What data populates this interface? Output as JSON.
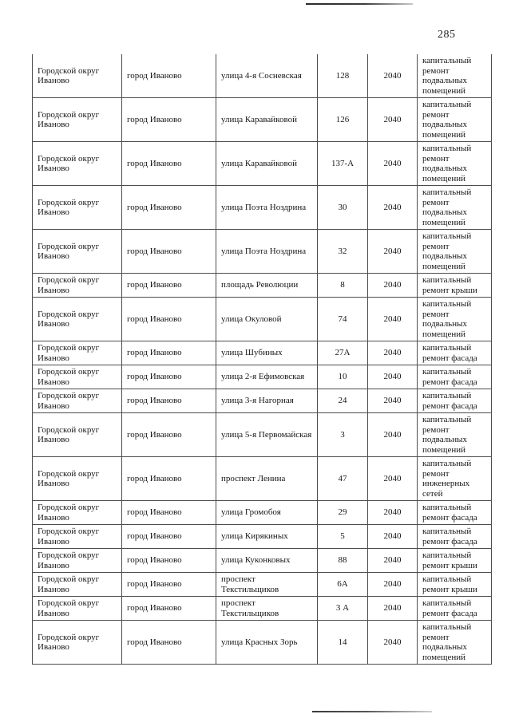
{
  "page": {
    "number": "285"
  },
  "table": {
    "rows": [
      {
        "district": "Городской округ Иваново",
        "city": "город Иваново",
        "street": "улица 4-я Сосневская",
        "house": "128",
        "year": "2040",
        "work": "капитальный ремонт подвальных помещений"
      },
      {
        "district": "Городской округ Иваново",
        "city": "город Иваново",
        "street": "улица Каравайковой",
        "house": "126",
        "year": "2040",
        "work": "капитальный ремонт подвальных помещений"
      },
      {
        "district": "Городской округ Иваново",
        "city": "город Иваново",
        "street": "улица Каравайковой",
        "house": "137-А",
        "year": "2040",
        "work": "капитальный ремонт подвальных помещений"
      },
      {
        "district": "Городской округ Иваново",
        "city": "город Иваново",
        "street": "улица Поэта Ноздрина",
        "house": "30",
        "year": "2040",
        "work": "капитальный ремонт подвальных помещений"
      },
      {
        "district": "Городской округ Иваново",
        "city": "город Иваново",
        "street": "улица Поэта Ноздрина",
        "house": "32",
        "year": "2040",
        "work": "капитальный ремонт подвальных помещений"
      },
      {
        "district": "Городской округ Иваново",
        "city": "город Иваново",
        "street": "площадь Революции",
        "house": "8",
        "year": "2040",
        "work": "капитальный ремонт крыши"
      },
      {
        "district": "Городской округ Иваново",
        "city": "город Иваново",
        "street": "улица Окуловой",
        "house": "74",
        "year": "2040",
        "work": "капитальный ремонт подвальных помещений"
      },
      {
        "district": "Городской округ Иваново",
        "city": "город Иваново",
        "street": "улица Шубиных",
        "house": "27А",
        "year": "2040",
        "work": "капитальный ремонт фасада"
      },
      {
        "district": "Городской округ Иваново",
        "city": "город Иваново",
        "street": "улица 2-я Ефимовская",
        "house": "10",
        "year": "2040",
        "work": "капитальный ремонт фасада"
      },
      {
        "district": "Городской округ Иваново",
        "city": "город Иваново",
        "street": "улица 3-я Нагорная",
        "house": "24",
        "year": "2040",
        "work": "капитальный ремонт фасада"
      },
      {
        "district": "Городской округ Иваново",
        "city": "город Иваново",
        "street": "улица 5-я Первомайская",
        "house": "3",
        "year": "2040",
        "work": "капитальный ремонт подвальных помещений"
      },
      {
        "district": "Городской округ Иваново",
        "city": "город Иваново",
        "street": "проспект Ленина",
        "house": "47",
        "year": "2040",
        "work": "капитальный ремонт инженерных сетей"
      },
      {
        "district": "Городской округ Иваново",
        "city": "город Иваново",
        "street": "улица Громобоя",
        "house": "29",
        "year": "2040",
        "work": "капитальный ремонт фасада"
      },
      {
        "district": "Городской округ Иваново",
        "city": "город Иваново",
        "street": "улица Кирякиных",
        "house": "5",
        "year": "2040",
        "work": "капитальный ремонт фасада"
      },
      {
        "district": "Городской округ Иваново",
        "city": "город Иваново",
        "street": "улица Куконковых",
        "house": "88",
        "year": "2040",
        "work": "капитальный ремонт крыши"
      },
      {
        "district": "Городской округ Иваново",
        "city": "город Иваново",
        "street": "проспект Текстильщиков",
        "house": "6А",
        "year": "2040",
        "work": "капитальный ремонт крыши"
      },
      {
        "district": "Городской округ Иваново",
        "city": "город Иваново",
        "street": "проспект Текстильщиков",
        "house": "3 А",
        "year": "2040",
        "work": "капитальный ремонт фасада"
      },
      {
        "district": "Городской округ Иваново",
        "city": "город Иваново",
        "street": "улица Красных Зорь",
        "house": "14",
        "year": "2040",
        "work": "капитальный ремонт подвальных помещений"
      }
    ]
  }
}
